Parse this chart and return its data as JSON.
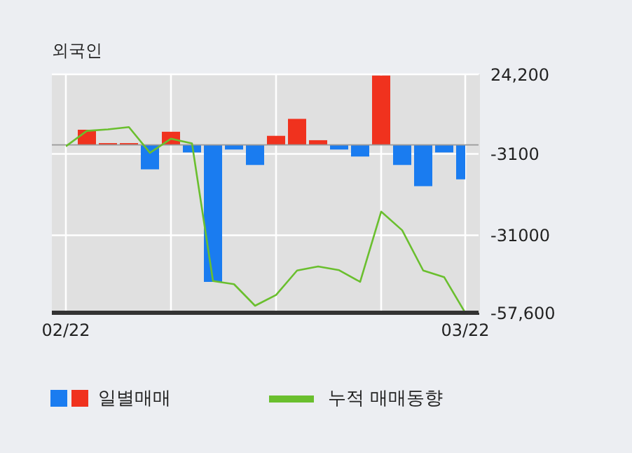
{
  "chart_data": {
    "type": "bar",
    "title": "외국인",
    "categories": [
      "02/22",
      null,
      null,
      null,
      null,
      null,
      null,
      null,
      null,
      null,
      null,
      null,
      null,
      null,
      null,
      null,
      null,
      null,
      null,
      "03/22"
    ],
    "series": [
      {
        "name": "일별매매",
        "colors": [
          "#1a7cf0",
          "#f0321e",
          "#f0321e",
          "#f0321e",
          "#1a7cf0",
          "#f0321e",
          "#1a7cf0",
          "#1a7cf0",
          "#1a7cf0",
          "#1a7cf0",
          "#f0321e",
          "#f0321e",
          "#f0321e",
          "#1a7cf0",
          "#1a7cf0",
          "#f0321e",
          "#1a7cf0",
          "#1a7cf0",
          "#1a7cf0",
          "#1a7cf0"
        ],
        "values": [
          null,
          5200,
          600,
          600,
          -8400,
          4500,
          -2600,
          -47000,
          -1600,
          -6900,
          3100,
          8900,
          1600,
          -1600,
          -4000,
          23800,
          -6900,
          -14200,
          -2600,
          -11800
        ]
      },
      {
        "name": "누적 매매동향",
        "type": "line",
        "color": "#6abf2e",
        "values": [
          -500,
          4800,
          5300,
          6100,
          -2700,
          2100,
          500,
          -46700,
          -47800,
          -55200,
          -51500,
          -43100,
          -41700,
          -43000,
          -47000,
          -22900,
          -29300,
          -43100,
          -45400,
          -57600
        ]
      }
    ],
    "ylim": [
      -57600,
      24200
    ],
    "yticks": [
      {
        "value": 24200,
        "label": "24,200"
      },
      {
        "value": -3100,
        "label": "-3100"
      },
      {
        "value": -31000,
        "label": "-31000"
      },
      {
        "value": -57600,
        "label": "-57,600"
      }
    ],
    "ref_lines": [
      {
        "axis": "y",
        "value": 0,
        "color": "#999999"
      }
    ],
    "grid": true,
    "legend": "bottom",
    "marker": "none"
  }
}
